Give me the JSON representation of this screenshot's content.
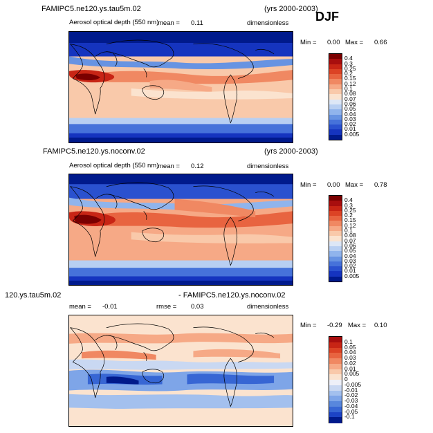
{
  "season": "DJF",
  "panels": [
    {
      "title_left": "FAMIPC5.ne120.ys.tau5m.02",
      "title_right": "(yrs 2000-2003)",
      "variable": "Aerosol optical depth (550 nm)",
      "mean_label": "mean =",
      "mean_value": "0.11",
      "units": "dimensionless",
      "min_label": "Min =",
      "min_value": "0.00",
      "max_label": "Max =",
      "max_value": "0.66",
      "legend_levels": [
        "0.4",
        "0.3",
        "0.25",
        "0.2",
        "0.15",
        "0.12",
        "0.1",
        "0.08",
        "0.07",
        "0.06",
        "0.05",
        "0.04",
        "0.03",
        "0.02",
        "0.01",
        "0.005"
      ],
      "palette": [
        "#7a0000",
        "#a80e0e",
        "#c82515",
        "#dc4325",
        "#e86440",
        "#f08862",
        "#f6a986",
        "#f9c9aa",
        "#fbe3cf",
        "#dde7f6",
        "#b8cff2",
        "#90b4ec",
        "#6793e2",
        "#4672da",
        "#2a51cf",
        "#1534bf",
        "#001a8c"
      ]
    },
    {
      "title_left": "FAMIPC5.ne120.ys.noconv.02",
      "title_right": "(yrs 2000-2003)",
      "variable": "Aerosol optical depth (550 nm)",
      "mean_label": "mean =",
      "mean_value": "0.12",
      "units": "dimensionless",
      "min_label": "Min =",
      "min_value": "0.00",
      "max_label": "Max =",
      "max_value": "0.78",
      "legend_levels": [
        "0.4",
        "0.3",
        "0.25",
        "0.2",
        "0.15",
        "0.12",
        "0.1",
        "0.08",
        "0.07",
        "0.06",
        "0.05",
        "0.04",
        "0.03",
        "0.02",
        "0.01",
        "0.005"
      ],
      "palette": [
        "#7a0000",
        "#a80e0e",
        "#c82515",
        "#dc4325",
        "#e86440",
        "#f08862",
        "#f6a986",
        "#f9c9aa",
        "#fbe3cf",
        "#dde7f6",
        "#b8cff2",
        "#90b4ec",
        "#6793e2",
        "#4672da",
        "#2a51cf",
        "#1534bf",
        "#001a8c"
      ]
    },
    {
      "title_left": "120.ys.tau5m.02",
      "title_right": "- FAMIPC5.ne120.ys.noconv.02",
      "mean_label": "mean =",
      "mean_value": "-0.01",
      "rmse_label": "rmse =",
      "rmse_value": "0.03",
      "units": "dimensionless",
      "min_label": "Min =",
      "min_value": "-0.29",
      "max_label": "Max =",
      "max_value": "0.10",
      "legend_levels": [
        "0.1",
        "0.05",
        "0.04",
        "0.03",
        "0.02",
        "0.01",
        "0.005",
        "0",
        "-0.005",
        "-0.01",
        "-0.02",
        "-0.03",
        "-0.04",
        "-0.05",
        "-0.1"
      ],
      "palette": [
        "#a80e0e",
        "#c82515",
        "#dc4325",
        "#e86440",
        "#f08862",
        "#f6a986",
        "#f9c9aa",
        "#fbe3cf",
        "#eef0f8",
        "#c9d8f2",
        "#a3c0ee",
        "#7ea5e8",
        "#5887dd",
        "#3766d4",
        "#1c43c6",
        "#001a8c"
      ]
    }
  ]
}
